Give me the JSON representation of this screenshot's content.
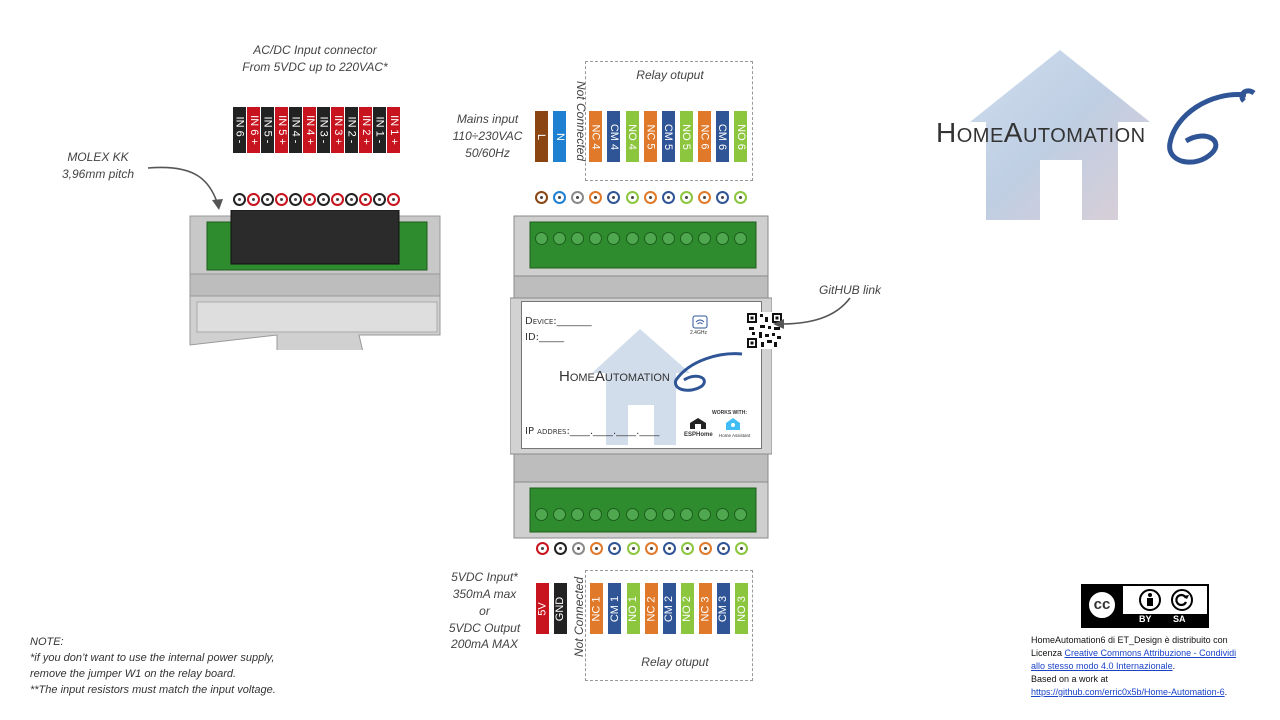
{
  "labels": {
    "acdc_title": "AC/DC Input connector",
    "acdc_sub": "From 5VDC up to 220VAC*",
    "molex_1": "MOLEX KK",
    "molex_2": "3,96mm pitch",
    "mains_1": "Mains input",
    "mains_2": "110÷230VAC",
    "mains_3": "50/60Hz",
    "not_connected": "Not Connected",
    "relay_output_top": "Relay otuput",
    "relay_output_bottom": "Relay otuput",
    "github": "GitHUB link",
    "dc_1": "5VDC Input*",
    "dc_2": "350mA max",
    "dc_3": "or",
    "dc_4": "5VDC Output",
    "dc_5": "200mA MAX"
  },
  "note": {
    "title": "NOTE:",
    "line1": "*if you don’t want to use the internal power supply,",
    "line2": "remove the jumper W1 on the relay board.",
    "line3": "**The  input resistors must match the input voltage."
  },
  "input_pins": [
    "IN 6 -",
    "IN 6 +",
    "IN 5 -",
    "IN 5 +",
    "IN 4 -",
    "IN 4 +",
    "IN 3 -",
    "IN 3 +",
    "IN 2 -",
    "IN 2 +",
    "IN 1 -",
    "IN 1 +"
  ],
  "top_pins": [
    "L",
    "N",
    "NC 4",
    "CM 4",
    "NO 4",
    "NC 5",
    "CM 5",
    "NO 5",
    "NC 6",
    "CM 6",
    "NO 6"
  ],
  "bottom_pins": [
    "5V",
    "GND",
    "NC 1",
    "CM 1",
    "NO 1",
    "NC 2",
    "CM 2",
    "NO 2",
    "NC 3",
    "CM 3",
    "NO 3"
  ],
  "label_card": {
    "device": "Device:_______",
    "id": "ID:_____",
    "logo": "HomeAutomation",
    "ip": "IP addres:____.____.____.____",
    "wifi": "2.4GHz",
    "works_with": "WORKS WITH:",
    "esphome": "ESPHome",
    "home_assistant": "Home Assistant"
  },
  "logo": {
    "text": "HomeAutomation"
  },
  "license": {
    "cc": "cc",
    "by": "BY",
    "sa": "SA",
    "l1": "HomeAutomation6 di ET_Design è distribuito con",
    "l2a": "Licenza ",
    "l2link": "Creative Commons Attribuzione - Condividi",
    "l3link": "allo stesso modo 4.0 Internazionale",
    "l3b": ".",
    "l4": "Based on a work at",
    "l5link": "https://github.com/erric0x5b/Home-Automation-6",
    "l5b": "."
  },
  "colors": {
    "black": "#222222",
    "red": "#c8141e",
    "brown": "#8b4513",
    "blue": "#1f7fd1",
    "orange": "#e07a2a",
    "navy": "#2f5597",
    "green": "#8cc63f",
    "gray": "#8a8a8a",
    "terminal_green": "#2e8b2e"
  }
}
